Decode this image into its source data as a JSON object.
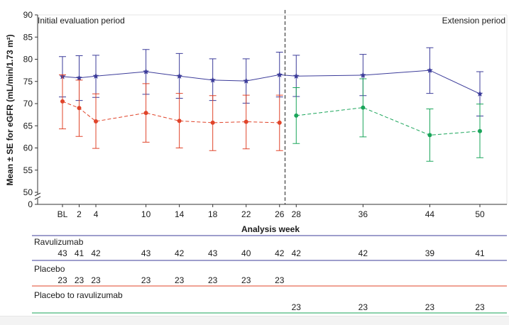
{
  "chart_data": {
    "type": "line",
    "title": "",
    "ylabel": "Mean ± SE for eGFR (mL/min/1.73 m²)",
    "xlabel": "Analysis week",
    "ylim": [
      0,
      90
    ],
    "y_axis_break": [
      0,
      50
    ],
    "yticks": [
      0,
      50,
      55,
      60,
      65,
      70,
      75,
      80,
      85,
      90
    ],
    "x": [
      "BL",
      "2",
      "4",
      "10",
      "14",
      "18",
      "22",
      "26",
      "28",
      "36",
      "44",
      "50"
    ],
    "x_weeks": [
      0,
      2,
      4,
      10,
      14,
      18,
      22,
      26,
      28,
      36,
      44,
      50
    ],
    "period_divider_week": 27,
    "periods": {
      "left": "Initial evaluation period",
      "right": "Extension period"
    },
    "grid": false,
    "series": [
      {
        "name": "Ravulizumab",
        "color": "#3c3c9a",
        "marker": "star",
        "line_style": "solid",
        "points": [
          {
            "week": 0,
            "mean": 76.1,
            "low": 71.5,
            "high": 80.6
          },
          {
            "week": 2,
            "mean": 75.8,
            "low": 70.7,
            "high": 80.8
          },
          {
            "week": 4,
            "mean": 76.2,
            "low": 71.4,
            "high": 80.9
          },
          {
            "week": 10,
            "mean": 77.2,
            "low": 72.1,
            "high": 82.2
          },
          {
            "week": 14,
            "mean": 76.2,
            "low": 71.2,
            "high": 81.3
          },
          {
            "week": 18,
            "mean": 75.3,
            "low": 70.7,
            "high": 80.1
          },
          {
            "week": 22,
            "mean": 75.1,
            "low": 70.1,
            "high": 80.1
          },
          {
            "week": 26,
            "mean": 76.5,
            "low": 71.5,
            "high": 81.6
          },
          {
            "week": 28,
            "mean": 76.2,
            "low": 71.6,
            "high": 80.9
          },
          {
            "week": 36,
            "mean": 76.4,
            "low": 71.8,
            "high": 81.1
          },
          {
            "week": 44,
            "mean": 77.5,
            "low": 72.3,
            "high": 82.6
          },
          {
            "week": 50,
            "mean": 72.2,
            "low": 67.2,
            "high": 77.2
          }
        ]
      },
      {
        "name": "Placebo",
        "color": "#e0442a",
        "marker": "circle",
        "line_style": "dashed",
        "points": [
          {
            "week": 0,
            "mean": 70.5,
            "low": 64.3,
            "high": 76.5
          },
          {
            "week": 2,
            "mean": 69.0,
            "low": 62.6,
            "high": 75.3
          },
          {
            "week": 4,
            "mean": 66.0,
            "low": 59.9,
            "high": 72.2
          },
          {
            "week": 10,
            "mean": 67.9,
            "low": 61.3,
            "high": 74.5
          },
          {
            "week": 14,
            "mean": 66.1,
            "low": 60.0,
            "high": 72.3
          },
          {
            "week": 18,
            "mean": 65.7,
            "low": 59.4,
            "high": 71.8
          },
          {
            "week": 22,
            "mean": 65.9,
            "low": 59.8,
            "high": 71.9
          },
          {
            "week": 26,
            "mean": 65.7,
            "low": 59.4,
            "high": 71.9
          }
        ]
      },
      {
        "name": "Placebo to ravulizumab",
        "color": "#1aa55a",
        "marker": "circle",
        "line_style": "dashed",
        "points": [
          {
            "week": 28,
            "mean": 67.3,
            "low": 61.0,
            "high": 73.6
          },
          {
            "week": 36,
            "mean": 69.1,
            "low": 62.5,
            "high": 75.6
          },
          {
            "week": 44,
            "mean": 62.9,
            "low": 57.0,
            "high": 68.8
          },
          {
            "week": 50,
            "mean": 63.8,
            "low": 57.8,
            "high": 69.9
          }
        ]
      }
    ]
  },
  "risk_table": [
    {
      "label": "Ravulizumab",
      "color": "#3c3c9a",
      "counts": [
        {
          "week": 0,
          "n": "43"
        },
        {
          "week": 2,
          "n": "41"
        },
        {
          "week": 4,
          "n": "42"
        },
        {
          "week": 10,
          "n": "43"
        },
        {
          "week": 14,
          "n": "42"
        },
        {
          "week": 18,
          "n": "43"
        },
        {
          "week": 22,
          "n": "40"
        },
        {
          "week": 26,
          "n": "42"
        },
        {
          "week": 28,
          "n": "42"
        },
        {
          "week": 36,
          "n": "42"
        },
        {
          "week": 44,
          "n": "39"
        },
        {
          "week": 50,
          "n": "41"
        }
      ]
    },
    {
      "label": "Placebo",
      "color": "#e0442a",
      "counts": [
        {
          "week": 0,
          "n": "23"
        },
        {
          "week": 2,
          "n": "23"
        },
        {
          "week": 4,
          "n": "23"
        },
        {
          "week": 10,
          "n": "23"
        },
        {
          "week": 14,
          "n": "23"
        },
        {
          "week": 18,
          "n": "23"
        },
        {
          "week": 22,
          "n": "23"
        },
        {
          "week": 26,
          "n": "23"
        }
      ]
    },
    {
      "label": "Placebo to ravulizumab",
      "color": "#1aa55a",
      "counts": [
        {
          "week": 28,
          "n": "23"
        },
        {
          "week": 36,
          "n": "23"
        },
        {
          "week": 44,
          "n": "23"
        },
        {
          "week": 50,
          "n": "23"
        }
      ]
    }
  ]
}
